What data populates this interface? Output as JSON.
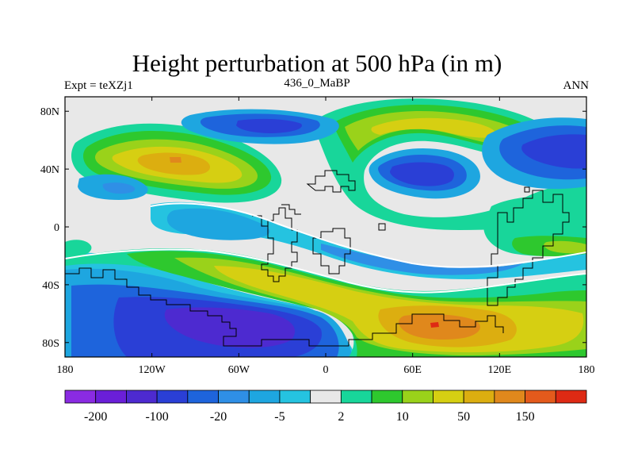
{
  "title": "Height perturbation at 500 hPa (in m)",
  "subtitle_left": "Expt = teXZj1",
  "subtitle_center": "436_0_MaBP",
  "subtitle_right": "ANN",
  "axes": {
    "lat_ticks": [
      {
        "value": 80,
        "label": "80N"
      },
      {
        "value": 40,
        "label": "40N"
      },
      {
        "value": 0,
        "label": "0"
      },
      {
        "value": -40,
        "label": "40S"
      },
      {
        "value": -80,
        "label": "80S"
      }
    ],
    "lon_ticks": [
      {
        "value": -180,
        "label": "180"
      },
      {
        "value": -120,
        "label": "120W"
      },
      {
        "value": -60,
        "label": "60W"
      },
      {
        "value": 0,
        "label": "0"
      },
      {
        "value": 60,
        "label": "60E"
      },
      {
        "value": 120,
        "label": "120E"
      },
      {
        "value": 180,
        "label": "180"
      }
    ]
  },
  "colorbar": {
    "colors": [
      "#8a2be2",
      "#6a1fd8",
      "#4d2ad0",
      "#2a3fd6",
      "#1e64dc",
      "#2f8fe6",
      "#1ea6e0",
      "#25c3e0",
      "#e8e8e8",
      "#18d69a",
      "#2ec82e",
      "#9ad21a",
      "#d6cf12",
      "#dcae10",
      "#e0881c",
      "#e45a1c",
      "#de2a14"
    ],
    "labels": [
      {
        "after_box": 1,
        "text": "-200"
      },
      {
        "after_box": 3,
        "text": "-100"
      },
      {
        "after_box": 5,
        "text": "-20"
      },
      {
        "after_box": 7,
        "text": "-5"
      },
      {
        "after_box": 9,
        "text": "2"
      },
      {
        "after_box": 11,
        "text": "10"
      },
      {
        "after_box": 13,
        "text": "50"
      },
      {
        "after_box": 15,
        "text": "150"
      }
    ]
  },
  "chart_data": {
    "type": "heatmap",
    "title": "Height perturbation at 500 hPa (in m)",
    "variable": "500 hPa geopotential height perturbation",
    "units": "m",
    "xlabel": "",
    "ylabel": "",
    "xlim": [
      -180,
      180
    ],
    "ylim": [
      -90,
      90
    ],
    "color_levels": [
      "-200",
      "-100",
      "-20",
      "-5",
      "2",
      "10",
      "50",
      "150"
    ],
    "approx_extrema": [
      {
        "lon": -105,
        "lat": 45,
        "sign": "positive"
      },
      {
        "lon": -80,
        "lat": -65,
        "sign": "negative"
      },
      {
        "lon": 75,
        "lat": -68,
        "sign": "positive"
      },
      {
        "lon": 45,
        "lat": 40,
        "sign": "negative"
      },
      {
        "lon": 165,
        "lat": 45,
        "sign": "negative"
      }
    ]
  }
}
